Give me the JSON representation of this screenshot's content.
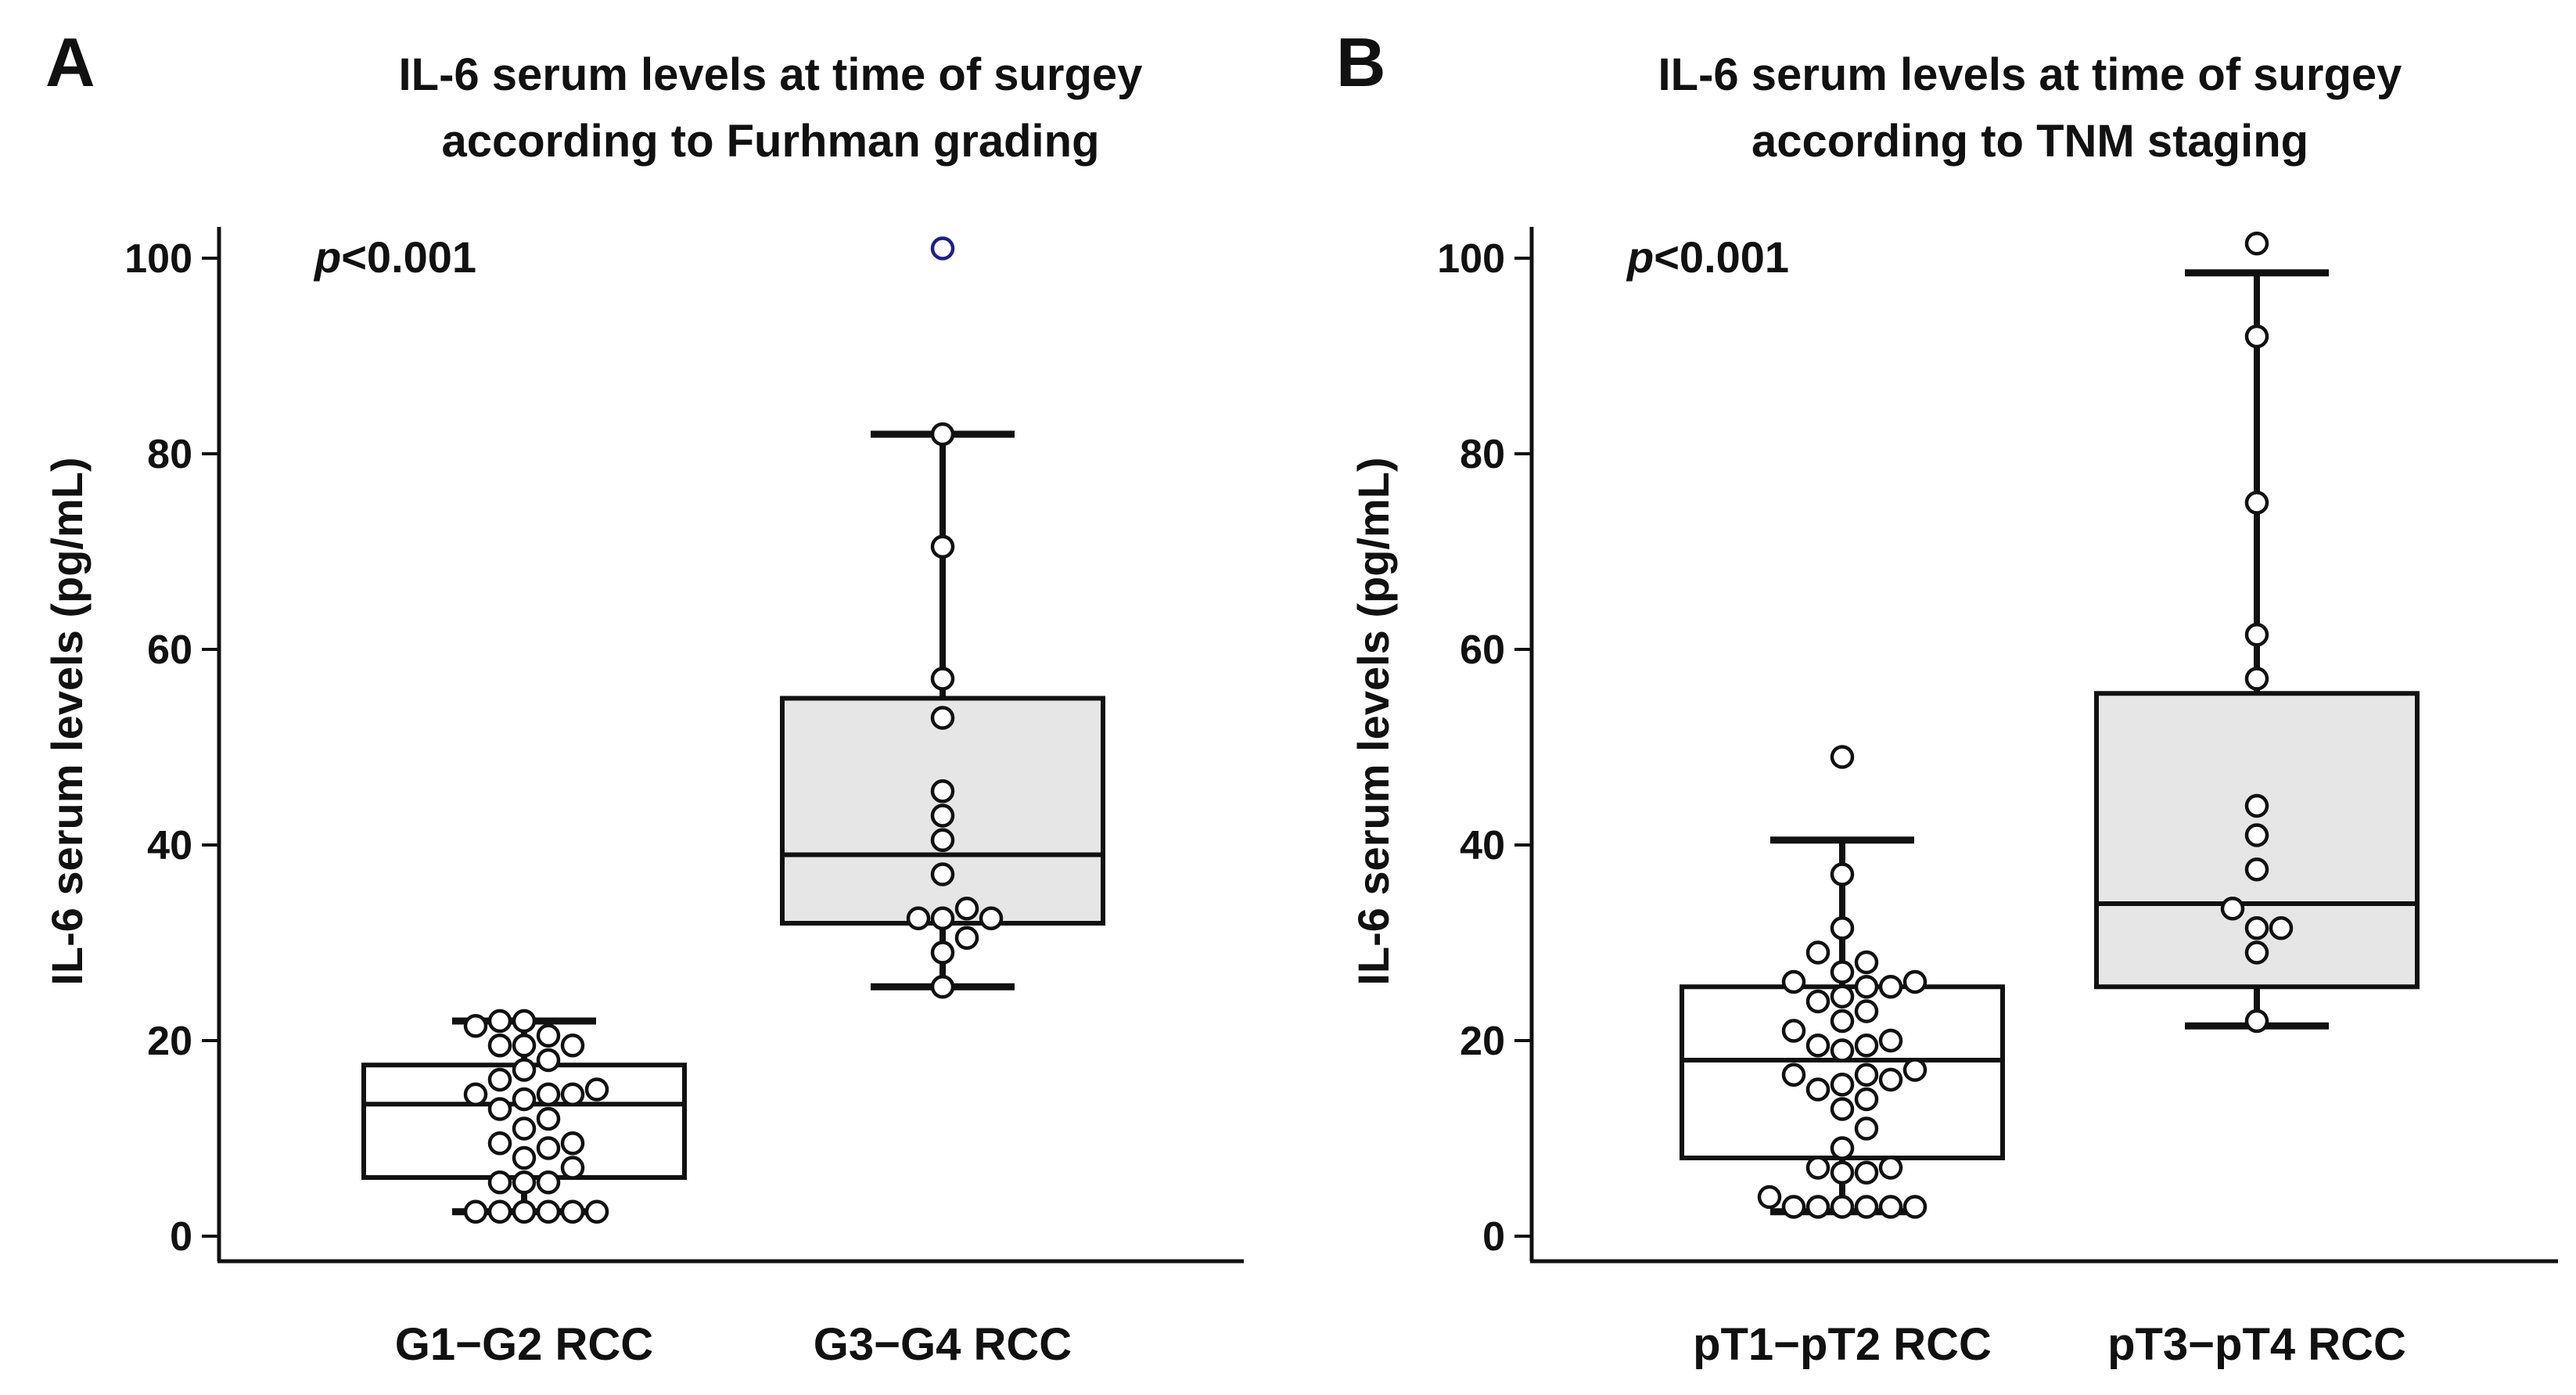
{
  "chart_data": [
    {
      "type": "boxplot",
      "panel_label": "A",
      "title_lines": [
        "IL-6 serum levels at time of surgey",
        "according to Furhman grading"
      ],
      "ylabel": "IL-6 serum levels (pg/mL)",
      "ylim": [
        0,
        100
      ],
      "yticks": [
        "0",
        "20",
        "40",
        "60",
        "80",
        "100"
      ],
      "p_value": {
        "symbol": "p",
        "text": "<0.001"
      },
      "colors": {
        "box_fill_low": "#ffffff",
        "box_fill_high": "#e6e6e6",
        "outlier": "#1f1f8a",
        "line": "#111111"
      },
      "categories": [
        "G1−G2 RCC",
        "G3−G4 RCC"
      ],
      "groups": [
        {
          "name": "G1−G2 RCC",
          "whisker_low": 2.5,
          "q1": 6,
          "median": 13.5,
          "q3": 17.5,
          "whisker_high": 22,
          "points": [
            2.5,
            2.5,
            2.5,
            2.5,
            2.5,
            2.5,
            5.5,
            5.5,
            5.5,
            7,
            8,
            9,
            9.5,
            9.5,
            11,
            12,
            13,
            14,
            14.5,
            14.5,
            14.5,
            15,
            16,
            17,
            18,
            19.5,
            19.5,
            19.5,
            20.5,
            21.5,
            22,
            22
          ],
          "outliers": []
        },
        {
          "name": "G3−G4 RCC",
          "whisker_low": 25.5,
          "q1": 32,
          "median": 39,
          "q3": 55,
          "whisker_high": 82,
          "points": [
            25.5,
            29,
            30.5,
            32.5,
            32.5,
            32.5,
            33.5,
            37,
            40.5,
            43,
            45.5,
            53,
            57,
            70.5,
            82
          ],
          "outliers": [
            101
          ]
        }
      ]
    },
    {
      "type": "boxplot",
      "panel_label": "B",
      "title_lines": [
        "IL-6 serum levels at time of surgey",
        "according to TNM staging"
      ],
      "ylabel": "IL-6 serum levels (pg/mL)",
      "ylim": [
        0,
        100
      ],
      "yticks": [
        "0",
        "20",
        "40",
        "60",
        "80",
        "100"
      ],
      "p_value": {
        "symbol": "p",
        "text": "<0.001"
      },
      "colors": {
        "box_fill_low": "#ffffff",
        "box_fill_high": "#e6e6e6",
        "outlier": "#111111",
        "line": "#111111"
      },
      "categories": [
        "pT1−pT2 RCC",
        "pT3−pT4 RCC"
      ],
      "groups": [
        {
          "name": "pT1−pT2 RCC",
          "whisker_low": 2.5,
          "q1": 8,
          "median": 18,
          "q3": 25.5,
          "whisker_high": 40.5,
          "points": [
            3,
            3,
            3,
            3,
            3,
            3,
            4,
            6.5,
            6.5,
            7,
            7,
            9,
            11,
            13,
            14,
            15,
            15.5,
            16,
            16.5,
            16.5,
            17,
            19,
            19.5,
            19.5,
            20,
            21,
            22,
            23,
            24,
            24.5,
            25.5,
            25.5,
            26,
            26,
            27,
            28,
            29,
            31.5,
            37
          ],
          "outliers": [
            49
          ]
        },
        {
          "name": "pT3−pT4 RCC",
          "whisker_low": 21.5,
          "q1": 25.5,
          "median": 34,
          "q3": 55.5,
          "whisker_high": 98.5,
          "points": [
            22,
            29,
            31.5,
            31.5,
            33.5,
            37.5,
            41,
            44,
            57,
            61.5,
            75,
            92,
            101.5
          ],
          "outliers": []
        }
      ]
    }
  ]
}
